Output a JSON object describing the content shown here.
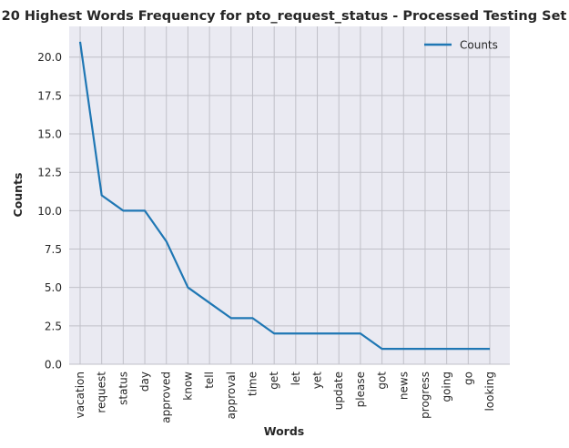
{
  "chart_data": {
    "type": "line",
    "title": "20 Highest Words Frequency for pto_request_status - Processed Testing Set",
    "xlabel": "Words",
    "ylabel": "Counts",
    "categories": [
      "vacation",
      "request",
      "status",
      "day",
      "approved",
      "know",
      "tell",
      "approval",
      "time",
      "get",
      "let",
      "yet",
      "update",
      "please",
      "got",
      "news",
      "progress",
      "going",
      "go",
      "looking"
    ],
    "series": [
      {
        "name": "Counts",
        "color": "#1f77b4",
        "values": [
          21,
          11,
          10,
          10,
          8,
          5,
          4,
          3,
          3,
          2,
          2,
          2,
          2,
          2,
          1,
          1,
          1,
          1,
          1,
          1
        ]
      }
    ],
    "ylim": [
      0,
      22
    ],
    "yticks": [
      "0.0",
      "2.5",
      "5.0",
      "7.5",
      "10.0",
      "12.5",
      "15.0",
      "17.5",
      "20.0"
    ],
    "grid": true,
    "legend_position": "top-right",
    "background": "#eaeaf2",
    "grid_color": "#c0c0c8"
  }
}
